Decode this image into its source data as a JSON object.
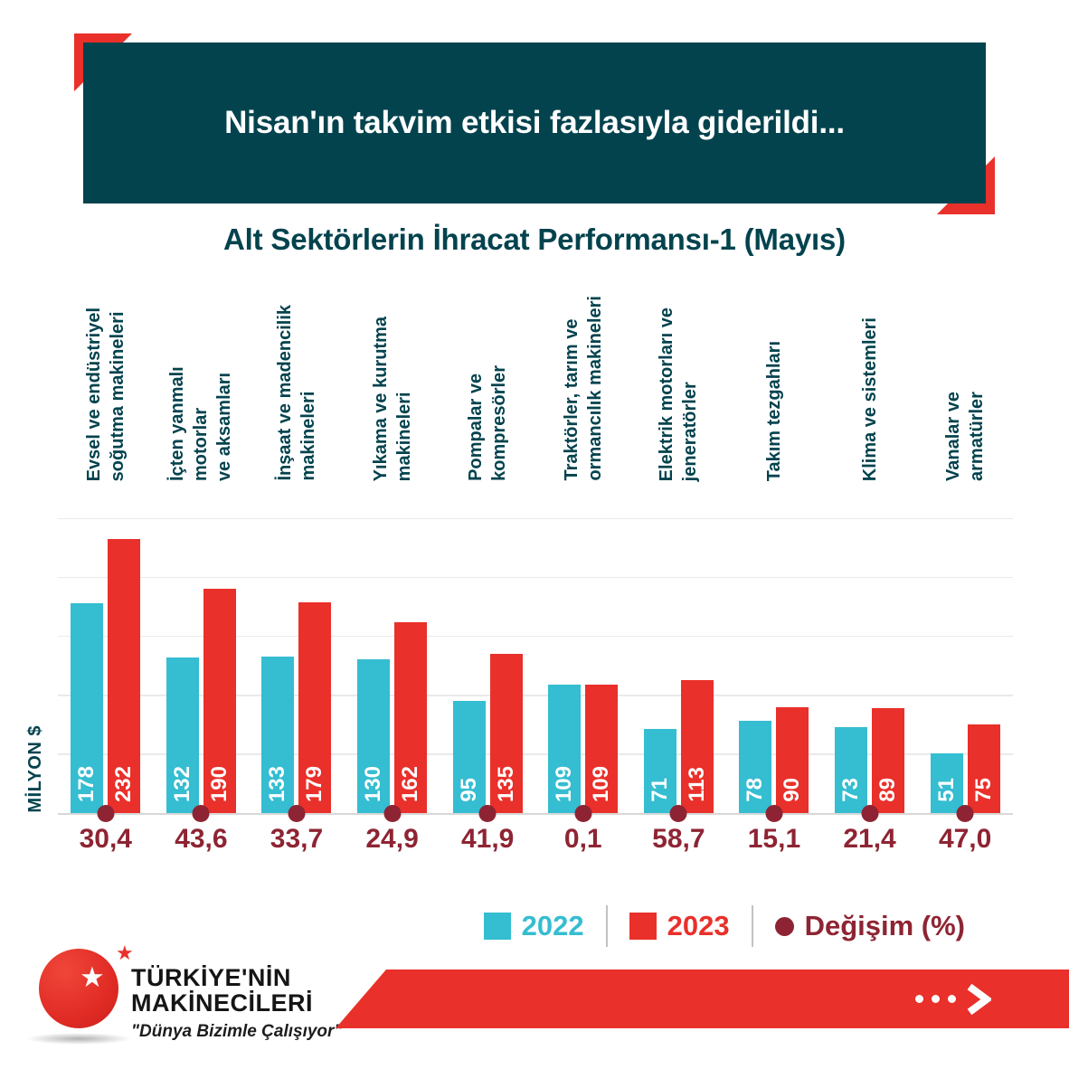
{
  "banner": {
    "title": "Nisan'ın takvim etkisi fazlasıyla giderildi..."
  },
  "chart": {
    "title": "Alt Sektörlerin İhracat Performansı-1 (Mayıs)",
    "y_axis_label": "MİLYON $"
  },
  "chart_data": {
    "type": "bar",
    "title": "Alt Sektörlerin İhracat Performansı-1 (Mayıs)",
    "ylabel": "MİLYON $",
    "ylim": [
      0,
      250
    ],
    "grid": true,
    "gridline_values": [
      0,
      50,
      100,
      150,
      200,
      250
    ],
    "legend_position": "bottom-right",
    "categories": [
      "Evsel ve endüstriyel\nsoğutma makineleri",
      "İçten yanmalı motorlar\nve aksamları",
      "İnşaat ve madencilik\nmakineleri",
      "Yıkama ve kurutma\nmakineleri",
      "Pompalar ve\nkompresörler",
      "Traktörler, tarım ve\normancılık makineleri",
      "Elektrik motorları ve\njeneratörler",
      "Takım tezgahları",
      "Klima ve sistemleri",
      "Vanalar ve\narmatürler"
    ],
    "series": [
      {
        "name": "2022",
        "color": "#35bdd1",
        "values": [
          178,
          132,
          133,
          130,
          95,
          109,
          71,
          78,
          73,
          51
        ]
      },
      {
        "name": "2023",
        "color": "#e9302a",
        "values": [
          232,
          190,
          179,
          162,
          135,
          109,
          113,
          90,
          89,
          75
        ]
      }
    ],
    "change": {
      "name": "Değişim (%)",
      "color": "#8e2433",
      "labels": [
        "30,4",
        "43,6",
        "33,7",
        "24,9",
        "41,9",
        "0,1",
        "58,7",
        "15,1",
        "21,4",
        "47,0"
      ],
      "values": [
        30.4,
        43.6,
        33.7,
        24.9,
        41.9,
        0.1,
        58.7,
        15.1,
        21.4,
        47.0
      ]
    }
  },
  "legend": {
    "items": [
      {
        "label": "2022",
        "swatch": "square",
        "color": "#35bdd1"
      },
      {
        "label": "2023",
        "swatch": "square",
        "color": "#e9302a"
      },
      {
        "label": "Değişim (%)",
        "swatch": "circle",
        "color": "#8e2433"
      }
    ]
  },
  "footer": {
    "brand_line1": "TÜRKİYE'NİN",
    "brand_line2": "MAKİNECİLERİ",
    "tagline": "\"Dünya Bizimle Çalışıyor\"",
    "star": "★"
  },
  "colors": {
    "teal": "#03434e",
    "cyan": "#35bdd1",
    "red": "#e9302a",
    "dark_red": "#8e2433",
    "gridline": "#eaeaea"
  }
}
